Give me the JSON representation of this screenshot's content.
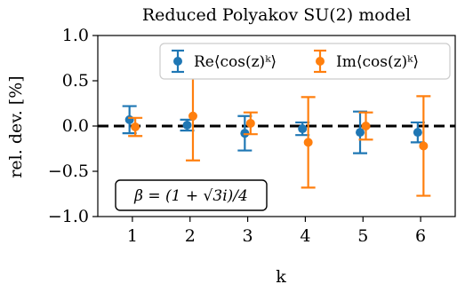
{
  "chart_data": {
    "type": "errorbar",
    "title": "Reduced Polyakov SU(2) model",
    "xlabel": "k",
    "ylabel": "rel. dev. [%]",
    "ylim": [
      -1.0,
      1.0
    ],
    "xlim": [
      0.4,
      6.6
    ],
    "yticks": [
      -1.0,
      -0.5,
      0.0,
      0.5,
      1.0
    ],
    "ytick_labels": [
      "−1.0",
      "−0.5",
      "0.0",
      "0.5",
      "1.0"
    ],
    "xticks": [
      1,
      2,
      3,
      4,
      5,
      6
    ],
    "xtick_labels": [
      "1",
      "2",
      "3",
      "4",
      "5",
      "6"
    ],
    "grid": false,
    "reference_line": {
      "y": 0.0,
      "style": "dashed",
      "color": "#000000"
    },
    "legend_position": "top-right",
    "annotation": "β = (1 + √3i)/4",
    "annotation_position": "bottom-left",
    "series": [
      {
        "name": "Re⟨cos(z)ᵏ⟩",
        "color": "#1f77b4",
        "x": [
          1,
          2,
          3,
          4,
          5,
          6
        ],
        "y": [
          0.07,
          0.01,
          -0.08,
          -0.03,
          -0.07,
          -0.07
        ],
        "yerr": [
          0.15,
          0.06,
          0.19,
          0.07,
          0.23,
          0.11
        ]
      },
      {
        "name": "Im⟨cos(z)ᵏ⟩",
        "color": "#ff7f0e",
        "x": [
          1,
          2,
          3,
          4,
          5,
          6
        ],
        "y": [
          -0.01,
          0.11,
          0.03,
          -0.18,
          0.0,
          -0.22
        ],
        "yerr": [
          0.1,
          0.49,
          0.12,
          0.5,
          0.15,
          0.55
        ]
      }
    ]
  }
}
